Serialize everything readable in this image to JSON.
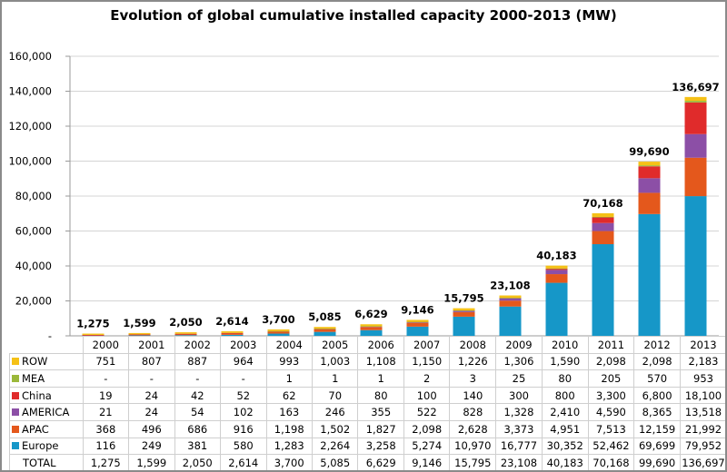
{
  "chart_data": {
    "type": "bar",
    "stacked": true,
    "title": "Evolution of global cumulative installed capacity 2000-2013 (MW)",
    "xlabel": "",
    "ylabel": "",
    "ylim": [
      0,
      160000
    ],
    "yticks": [
      0,
      20000,
      40000,
      60000,
      80000,
      100000,
      120000,
      140000,
      160000
    ],
    "ytick_labels": [
      "-",
      "20,000",
      "40,000",
      "60,000",
      "80,000",
      "100,000",
      "120,000",
      "140,000",
      "160,000"
    ],
    "grid": true,
    "legend": "table-below",
    "categories": [
      "2000",
      "2001",
      "2002",
      "2003",
      "2004",
      "2005",
      "2006",
      "2007",
      "2008",
      "2009",
      "2010",
      "2011",
      "2012",
      "2013"
    ],
    "series": [
      {
        "name": "ROW",
        "color": "#f5c116",
        "values": [
          751,
          807,
          887,
          964,
          993,
          1003,
          1108,
          1150,
          1226,
          1306,
          1590,
          2098,
          2098,
          2183
        ],
        "labels": [
          "751",
          "807",
          "887",
          "964",
          "993",
          "1,003",
          "1,108",
          "1,150",
          "1,226",
          "1,306",
          "1,590",
          "2,098",
          "2,098",
          "2,183"
        ]
      },
      {
        "name": "MEA",
        "color": "#9bb83a",
        "values": [
          0,
          0,
          0,
          0,
          1,
          1,
          1,
          2,
          3,
          25,
          80,
          205,
          570,
          953
        ],
        "labels": [
          "-",
          "-",
          "-",
          "-",
          "1",
          "1",
          "1",
          "2",
          "3",
          "25",
          "80",
          "205",
          "570",
          "953"
        ]
      },
      {
        "name": "China",
        "color": "#e02b2b",
        "values": [
          19,
          24,
          42,
          52,
          62,
          70,
          80,
          100,
          140,
          300,
          800,
          3300,
          6800,
          18100
        ],
        "labels": [
          "19",
          "24",
          "42",
          "52",
          "62",
          "70",
          "80",
          "100",
          "140",
          "300",
          "800",
          "3,300",
          "6,800",
          "18,100"
        ]
      },
      {
        "name": "AMERICA",
        "color": "#8c4fa6",
        "values": [
          21,
          24,
          54,
          102,
          163,
          246,
          355,
          522,
          828,
          1328,
          2410,
          4590,
          8365,
          13518
        ],
        "labels": [
          "21",
          "24",
          "54",
          "102",
          "163",
          "246",
          "355",
          "522",
          "828",
          "1,328",
          "2,410",
          "4,590",
          "8,365",
          "13,518"
        ]
      },
      {
        "name": "APAC",
        "color": "#e4581c",
        "values": [
          368,
          496,
          686,
          916,
          1198,
          1502,
          1827,
          2098,
          2628,
          3373,
          4951,
          7513,
          12159,
          21992
        ],
        "labels": [
          "368",
          "496",
          "686",
          "916",
          "1,198",
          "1,502",
          "1,827",
          "2,098",
          "2,628",
          "3,373",
          "4,951",
          "7,513",
          "12,159",
          "21,992"
        ]
      },
      {
        "name": "Europe",
        "color": "#1697c8",
        "values": [
          116,
          249,
          381,
          580,
          1283,
          2264,
          3258,
          5274,
          10970,
          16777,
          30352,
          52462,
          69699,
          79952
        ],
        "labels": [
          "116",
          "249",
          "381",
          "580",
          "1,283",
          "2,264",
          "3,258",
          "5,274",
          "10,970",
          "16,777",
          "30,352",
          "52,462",
          "69,699",
          "79,952"
        ]
      }
    ],
    "total": {
      "name": "TOTAL",
      "values": [
        1275,
        1599,
        2050,
        2614,
        3700,
        5085,
        6629,
        9146,
        15795,
        23108,
        40183,
        70168,
        99690,
        136697
      ],
      "labels": [
        "1,275",
        "1,599",
        "2,050",
        "2,614",
        "3,700",
        "5,085",
        "6,629",
        "9,146",
        "15,795",
        "23,108",
        "40,183",
        "70,168",
        "99,690",
        "136,697"
      ]
    }
  }
}
